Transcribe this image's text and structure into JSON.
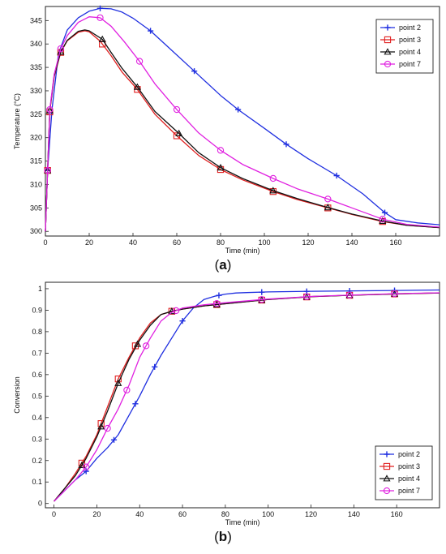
{
  "chart_data": [
    {
      "type": "line",
      "panel_label": "a",
      "xlabel": "Time (min)",
      "ylabel": "Temperature (°C)",
      "xlim": [
        0,
        180
      ],
      "ylim": [
        299,
        348
      ],
      "xticks": [
        0,
        20,
        40,
        60,
        80,
        100,
        120,
        140,
        160
      ],
      "yticks": [
        300,
        305,
        310,
        315,
        320,
        325,
        330,
        335,
        340,
        345
      ],
      "grid": false,
      "legend_position": "top-right",
      "series": [
        {
          "name": "point 2",
          "color": "#1f2fe0",
          "marker": "plus",
          "x": [
            0,
            1,
            3,
            6,
            10,
            15,
            20,
            25,
            30,
            35,
            40,
            48,
            55,
            68,
            80,
            88,
            100,
            110,
            120,
            133,
            145,
            150,
            155,
            160,
            170,
            180
          ],
          "y": [
            300,
            313,
            326,
            338,
            343,
            345.6,
            347.0,
            347.6,
            347.5,
            346.8,
            345.5,
            342.8,
            339.8,
            334.2,
            329.0,
            326.0,
            322.0,
            318.6,
            315.5,
            311.9,
            308.0,
            306.0,
            304.0,
            302.5,
            301.8,
            301.4
          ],
          "markers_x": [
            1,
            25,
            48,
            68,
            88,
            110,
            133,
            155
          ]
        },
        {
          "name": "point 3",
          "color": "#e01f1f",
          "marker": "square",
          "x": [
            0,
            1,
            2,
            4,
            7,
            10,
            15,
            18,
            20,
            25,
            30,
            35,
            42,
            50,
            60,
            70,
            80,
            90,
            104,
            115,
            129,
            140,
            154,
            165,
            180
          ],
          "y": [
            300,
            313,
            325.5,
            333,
            338.2,
            340.7,
            342.5,
            342.8,
            342.6,
            340.6,
            337.5,
            334,
            330.3,
            325.0,
            320.4,
            316.2,
            313.2,
            311.0,
            308.5,
            306.8,
            305.0,
            303.6,
            302.1,
            301.3,
            300.8
          ],
          "markers_x": [
            1,
            2,
            7,
            26,
            42,
            60,
            80,
            104,
            129,
            154
          ]
        },
        {
          "name": "point 4",
          "color": "#111111",
          "marker": "triangle",
          "x": [
            0,
            1,
            2,
            4,
            7,
            10,
            15,
            18,
            20,
            26,
            30,
            35,
            42,
            50,
            61,
            70,
            80,
            90,
            104,
            115,
            129,
            140,
            154,
            165,
            180
          ],
          "y": [
            300,
            313,
            325.8,
            333.2,
            338.3,
            340.8,
            342.7,
            343.0,
            342.8,
            341.0,
            338.2,
            334.8,
            330.8,
            325.6,
            320.9,
            316.8,
            313.6,
            311.3,
            308.7,
            307.0,
            305.1,
            303.7,
            302.2,
            301.3,
            300.8
          ],
          "markers_x": [
            1,
            2,
            7,
            26,
            42,
            61,
            80,
            104,
            129,
            154
          ]
        },
        {
          "name": "point 7",
          "color": "#e020e0",
          "marker": "circle",
          "x": [
            0,
            1,
            2,
            4,
            7,
            10,
            15,
            20,
            25,
            30,
            36,
            43,
            50,
            60,
            70,
            80,
            90,
            104,
            115,
            129,
            140,
            154,
            165,
            180
          ],
          "y": [
            300,
            313,
            326,
            333.5,
            339,
            341.8,
            344.6,
            345.8,
            345.6,
            343.8,
            340.5,
            336.3,
            331.5,
            326.0,
            321.0,
            317.3,
            314.3,
            311.3,
            309.1,
            306.9,
            305.0,
            302.6,
            301.5,
            300.9
          ],
          "markers_x": [
            1,
            2,
            7,
            25,
            43,
            60,
            80,
            104,
            129,
            154
          ]
        }
      ]
    },
    {
      "type": "line",
      "panel_label": "b",
      "xlabel": "Time (min)",
      "ylabel": "Conversion",
      "xlim": [
        -4,
        180
      ],
      "ylim": [
        -0.02,
        1.03
      ],
      "xticks": [
        0,
        20,
        40,
        60,
        80,
        100,
        120,
        140,
        160
      ],
      "yticks": [
        0,
        0.1,
        0.2,
        0.3,
        0.4,
        0.5,
        0.6,
        0.7,
        0.8,
        0.9,
        1
      ],
      "grid": false,
      "legend_position": "bottom-right",
      "series": [
        {
          "name": "point 2",
          "color": "#1f2fe0",
          "marker": "plus",
          "x": [
            0,
            5,
            10,
            15,
            20,
            25,
            30,
            35,
            40,
            45,
            50,
            55,
            60,
            65,
            70,
            75,
            80,
            85,
            90,
            100,
            120,
            140,
            160,
            180
          ],
          "y": [
            0.01,
            0.06,
            0.11,
            0.15,
            0.21,
            0.26,
            0.32,
            0.41,
            0.5,
            0.6,
            0.69,
            0.77,
            0.85,
            0.91,
            0.95,
            0.965,
            0.975,
            0.98,
            0.982,
            0.985,
            0.988,
            0.99,
            0.992,
            0.994
          ],
          "markers_x": [
            15,
            28,
            38,
            47,
            60,
            77,
            97,
            118,
            138,
            159
          ]
        },
        {
          "name": "point 3",
          "color": "#e01f1f",
          "marker": "square",
          "x": [
            0,
            5,
            10,
            15,
            20,
            25,
            30,
            35,
            40,
            45,
            50,
            55,
            60,
            70,
            80,
            100,
            120,
            140,
            160,
            180
          ],
          "y": [
            0.01,
            0.07,
            0.14,
            0.22,
            0.32,
            0.45,
            0.58,
            0.68,
            0.77,
            0.84,
            0.88,
            0.895,
            0.905,
            0.92,
            0.93,
            0.95,
            0.963,
            0.97,
            0.976,
            0.98
          ],
          "markers_x": [
            13,
            22,
            30,
            38,
            55,
            76,
            97,
            118,
            138,
            159
          ]
        },
        {
          "name": "point 4",
          "color": "#111111",
          "marker": "triangle",
          "x": [
            0,
            5,
            10,
            15,
            20,
            25,
            30,
            35,
            40,
            45,
            50,
            55,
            60,
            70,
            80,
            100,
            120,
            140,
            160,
            180
          ],
          "y": [
            0.01,
            0.07,
            0.13,
            0.21,
            0.31,
            0.43,
            0.56,
            0.67,
            0.76,
            0.83,
            0.88,
            0.895,
            0.905,
            0.92,
            0.93,
            0.95,
            0.963,
            0.97,
            0.976,
            0.98
          ],
          "markers_x": [
            13,
            22,
            30,
            39,
            55,
            76,
            97,
            118,
            138,
            159
          ]
        },
        {
          "name": "point 7",
          "color": "#e020e0",
          "marker": "circle",
          "x": [
            0,
            5,
            10,
            15,
            20,
            25,
            30,
            35,
            40,
            45,
            50,
            55,
            60,
            70,
            80,
            100,
            120,
            140,
            160,
            180
          ],
          "y": [
            0.01,
            0.06,
            0.11,
            0.17,
            0.25,
            0.35,
            0.44,
            0.55,
            0.68,
            0.77,
            0.85,
            0.89,
            0.91,
            0.925,
            0.935,
            0.952,
            0.964,
            0.971,
            0.977,
            0.981
          ],
          "markers_x": [
            15,
            25,
            34,
            43,
            57,
            76,
            97,
            118,
            138,
            159
          ]
        }
      ]
    }
  ]
}
